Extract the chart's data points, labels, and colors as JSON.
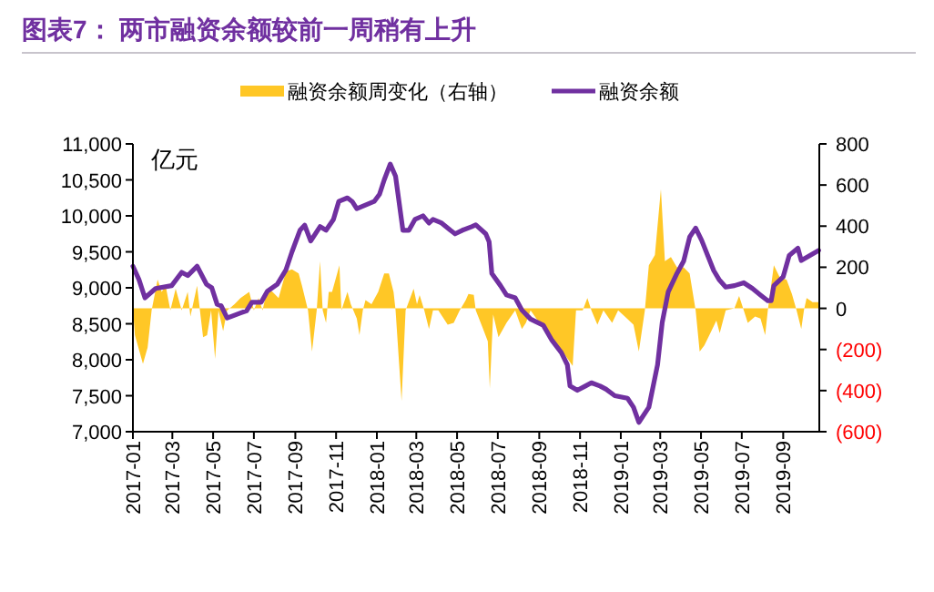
{
  "chart_data": {
    "type": "line",
    "title": "图表7：  两市融资余额较前一周稍有上升",
    "ylabel": "亿元",
    "legend": "top",
    "xlim": [
      "2017-01-01",
      "2019-10-25"
    ],
    "xticks": [
      "2017-01",
      "2017-03",
      "2017-05",
      "2017-07",
      "2017-09",
      "2017-11",
      "2018-01",
      "2018-03",
      "2018-05",
      "2018-07",
      "2018-09",
      "2018-11",
      "2019-01",
      "2019-03",
      "2019-05",
      "2019-07",
      "2019-09"
    ],
    "ylim": [
      7000,
      11000
    ],
    "yticks": [
      {
        "value": 7000,
        "label": "7,000"
      },
      {
        "value": 7500,
        "label": "7,500"
      },
      {
        "value": 8000,
        "label": "8,000"
      },
      {
        "value": 8500,
        "label": "8,500"
      },
      {
        "value": 9000,
        "label": "9,000"
      },
      {
        "value": 9500,
        "label": "9,500"
      },
      {
        "value": 10000,
        "label": "10,000"
      },
      {
        "value": 10500,
        "label": "10,500"
      },
      {
        "value": 11000,
        "label": "11,000"
      }
    ],
    "y2lim": [
      -600,
      800
    ],
    "y2ticks": [
      {
        "value": -600,
        "label": "(600)"
      },
      {
        "value": -400,
        "label": "(400)"
      },
      {
        "value": -200,
        "label": "(200)"
      },
      0,
      200,
      400,
      600,
      800
    ],
    "series": [
      {
        "name": "融资余额周变化（右轴）",
        "type": "area",
        "axis": "y2",
        "color": "#ffc726",
        "x": [
          "2017-01-01",
          "2017-01-04",
          "2017-01-16",
          "2017-01-23",
          "2017-01-29",
          "2017-02-07",
          "2017-02-13",
          "2017-02-19",
          "2017-02-26",
          "2017-03-06",
          "2017-03-15",
          "2017-03-24",
          "2017-03-28",
          "2017-04-07",
          "2017-04-16",
          "2017-04-22",
          "2017-04-28",
          "2017-05-04",
          "2017-05-09",
          "2017-05-16",
          "2017-05-22",
          "2017-06-02",
          "2017-06-11",
          "2017-06-24",
          "2017-07-01",
          "2017-07-08",
          "2017-07-14",
          "2017-07-21",
          "2017-07-29",
          "2017-08-07",
          "2017-08-18",
          "2017-08-27",
          "2017-09-06",
          "2017-09-11",
          "2017-09-20",
          "2017-09-26",
          "2017-10-03",
          "2017-10-08",
          "2017-10-12",
          "2017-10-17",
          "2017-10-21",
          "2017-10-26",
          "2017-11-06",
          "2017-11-09",
          "2017-11-18",
          "2017-11-23",
          "2017-12-02",
          "2017-12-06",
          "2017-12-11",
          "2017-12-15",
          "2017-12-24",
          "2018-01-03",
          "2018-01-12",
          "2018-01-19",
          "2018-01-26",
          "2018-01-29",
          "2018-02-07",
          "2018-02-13",
          "2018-02-25",
          "2018-03-02",
          "2018-03-06",
          "2018-03-13",
          "2018-03-20",
          "2018-03-26",
          "2018-04-03",
          "2018-04-17",
          "2018-04-26",
          "2018-05-05",
          "2018-05-14",
          "2018-05-18",
          "2018-05-26",
          "2018-05-29",
          "2018-06-09",
          "2018-06-16",
          "2018-06-19",
          "2018-06-24",
          "2018-07-02",
          "2018-07-14",
          "2018-07-27",
          "2018-08-06",
          "2018-08-12",
          "2018-08-19",
          "2018-09-03",
          "2018-09-16",
          "2018-10-08",
          "2018-10-21",
          "2018-10-26",
          "2018-11-05",
          "2018-11-12",
          "2018-11-18",
          "2018-11-27",
          "2018-12-06",
          "2018-12-19",
          "2018-12-28",
          "2019-01-07",
          "2019-01-20",
          "2019-01-28",
          "2019-02-06",
          "2019-02-12",
          "2019-02-21",
          "2019-03-02",
          "2019-03-08",
          "2019-03-17",
          "2019-03-26",
          "2019-04-05",
          "2019-04-14",
          "2019-04-23",
          "2019-04-29",
          "2019-05-06",
          "2019-05-15",
          "2019-05-24",
          "2019-05-29",
          "2019-06-07",
          "2019-06-20",
          "2019-06-27",
          "2019-07-04",
          "2019-07-10",
          "2019-07-21",
          "2019-07-29",
          "2019-08-05",
          "2019-08-09",
          "2019-08-18",
          "2019-08-27",
          "2019-09-06",
          "2019-09-14",
          "2019-09-21",
          "2019-09-28",
          "2019-10-02",
          "2019-10-06",
          "2019-10-15",
          "2019-10-24"
        ],
        "values": [
          0,
          -130,
          -270,
          -190,
          -10,
          140,
          80,
          110,
          -10,
          95,
          -10,
          80,
          -40,
          110,
          -140,
          -130,
          -10,
          -245,
          -10,
          -110,
          -10,
          20,
          50,
          80,
          -10,
          50,
          -10,
          95,
          80,
          50,
          180,
          190,
          170,
          110,
          -10,
          -210,
          -10,
          230,
          -10,
          -70,
          80,
          80,
          210,
          -10,
          80,
          20,
          -50,
          -130,
          -10,
          40,
          20,
          80,
          170,
          170,
          80,
          -10,
          -450,
          -10,
          95,
          20,
          65,
          -10,
          -100,
          -10,
          -10,
          -80,
          -70,
          -10,
          40,
          70,
          66,
          -10,
          -100,
          -160,
          -390,
          -30,
          -140,
          -70,
          -10,
          -100,
          -70,
          -10,
          -80,
          -130,
          -220,
          -280,
          -10,
          -10,
          50,
          -10,
          -80,
          -10,
          -70,
          -10,
          -40,
          -80,
          -210,
          -10,
          210,
          260,
          580,
          230,
          250,
          200,
          200,
          170,
          -10,
          -210,
          -180,
          -120,
          -60,
          -120,
          -10,
          0,
          60,
          -10,
          -70,
          -40,
          -50,
          -130,
          -10,
          210,
          150,
          140,
          70,
          -10,
          -100,
          -10,
          50,
          30,
          30
        ]
      },
      {
        "name": "融资余额",
        "color": "#7030a0",
        "x": [
          "2017-01-01",
          "2017-01-10",
          "2017-01-19",
          "2017-02-04",
          "2017-02-28",
          "2017-03-15",
          "2017-03-24",
          "2017-04-07",
          "2017-04-21",
          "2017-04-29",
          "2017-05-07",
          "2017-05-13",
          "2017-05-22",
          "2017-06-11",
          "2017-06-20",
          "2017-06-28",
          "2017-07-12",
          "2017-07-21",
          "2017-08-05",
          "2017-08-18",
          "2017-08-27",
          "2017-09-08",
          "2017-09-15",
          "2017-09-24",
          "2017-10-08",
          "2017-10-17",
          "2017-10-28",
          "2017-11-05",
          "2017-11-18",
          "2017-11-25",
          "2017-12-02",
          "2017-12-15",
          "2017-12-28",
          "2018-01-05",
          "2018-01-12",
          "2018-01-21",
          "2018-01-29",
          "2018-02-09",
          "2018-02-18",
          "2018-02-27",
          "2018-03-11",
          "2018-03-20",
          "2018-03-26",
          "2018-04-08",
          "2018-04-21",
          "2018-04-28",
          "2018-05-09",
          "2018-05-23",
          "2018-05-29",
          "2018-06-13",
          "2018-06-18",
          "2018-06-22",
          "2018-07-05",
          "2018-07-14",
          "2018-07-27",
          "2018-08-06",
          "2018-08-19",
          "2018-09-07",
          "2018-09-20",
          "2018-10-04",
          "2018-10-13",
          "2018-10-17",
          "2018-10-28",
          "2018-11-09",
          "2018-11-18",
          "2018-12-01",
          "2018-12-10",
          "2018-12-23",
          "2019-01-11",
          "2019-01-20",
          "2019-01-28",
          "2019-02-12",
          "2019-02-25",
          "2019-03-04",
          "2019-03-13",
          "2019-03-26",
          "2019-04-05",
          "2019-04-14",
          "2019-04-23",
          "2019-05-02",
          "2019-05-11",
          "2019-05-20",
          "2019-05-28",
          "2019-06-07",
          "2019-06-20",
          "2019-07-04",
          "2019-07-17",
          "2019-07-29",
          "2019-08-09",
          "2019-08-14",
          "2019-08-18",
          "2019-09-01",
          "2019-09-10",
          "2019-09-23",
          "2019-09-28",
          "2019-10-11",
          "2019-10-24"
        ],
        "values": [
          9300,
          9115,
          8860,
          8990,
          9030,
          9215,
          9170,
          9300,
          9050,
          9000,
          8770,
          8750,
          8580,
          8650,
          8680,
          8800,
          8800,
          8950,
          9050,
          9250,
          9500,
          9800,
          9870,
          9650,
          9850,
          9800,
          9950,
          10200,
          10250,
          10200,
          10100,
          10150,
          10200,
          10300,
          10500,
          10720,
          10550,
          9800,
          9800,
          9950,
          10000,
          9900,
          9950,
          9900,
          9800,
          9750,
          9800,
          9850,
          9875,
          9750,
          9640,
          9200,
          9030,
          8900,
          8860,
          8690,
          8565,
          8480,
          8270,
          8100,
          7930,
          7635,
          7575,
          7635,
          7680,
          7635,
          7590,
          7500,
          7465,
          7340,
          7130,
          7340,
          7930,
          8520,
          8945,
          9200,
          9370,
          9705,
          9830,
          9660,
          9450,
          9240,
          9115,
          9010,
          9030,
          9070,
          8990,
          8900,
          8820,
          8820,
          9030,
          9155,
          9450,
          9550,
          9380,
          9450,
          9520
        ]
      }
    ]
  }
}
